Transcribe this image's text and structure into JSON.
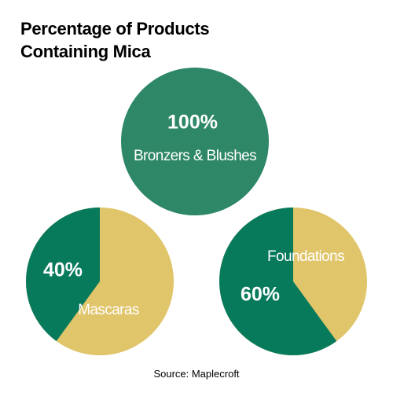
{
  "title_line1": "Percentage of Products",
  "title_line2": "Containing Mica",
  "source": "Source: Maplecroft",
  "colors": {
    "mica": "#2e8867",
    "mica_dark": "#087a5c",
    "other": "#e0c56a",
    "label": "#ffffff"
  },
  "chart_data": [
    {
      "type": "pie",
      "category": "Bronzers & Blushes",
      "value": 100,
      "value_label": "100%",
      "unit": "%"
    },
    {
      "type": "pie",
      "category": "Mascaras",
      "value": 40,
      "value_label": "40%",
      "unit": "%"
    },
    {
      "type": "pie",
      "category": "Foundations",
      "value": 60,
      "value_label": "60%",
      "unit": "%"
    }
  ]
}
